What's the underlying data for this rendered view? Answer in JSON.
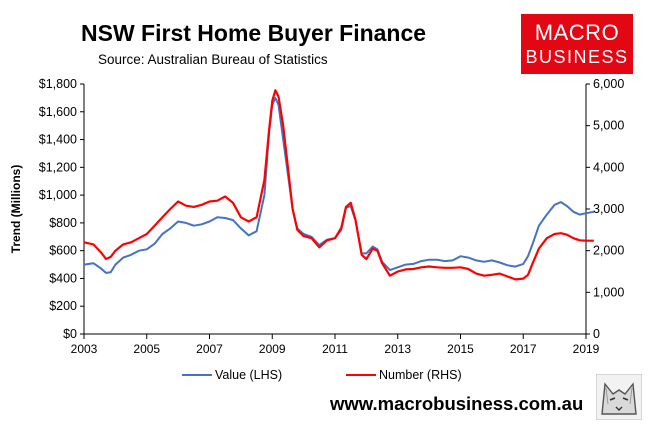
{
  "header": {
    "title": "NSW First Home Buyer Finance",
    "source": "Source: Australian Bureau of Statistics"
  },
  "brand": {
    "logo_line1": "MACRO",
    "logo_line2": "BUSINESS",
    "logo_color": "#e30613",
    "url": "www.macrobusiness.com.au",
    "mascot_icon": "wolf-head-icon"
  },
  "chart_data": {
    "type": "line",
    "ylabel": "Trend (Millions)",
    "xlim": [
      2003,
      2019
    ],
    "ylim_left": [
      0,
      1800
    ],
    "ylim_right": [
      0,
      6000
    ],
    "x_ticks": [
      2003,
      2005,
      2007,
      2009,
      2011,
      2013,
      2015,
      2017,
      2019
    ],
    "y_ticks_left_values": [
      0,
      200,
      400,
      600,
      800,
      1000,
      1200,
      1400,
      1600,
      1800
    ],
    "y_ticks_left_labels": [
      "$0",
      "$200",
      "$400",
      "$600",
      "$800",
      "$1,000",
      "$1,200",
      "$1,400",
      "$1,600",
      "$1,800"
    ],
    "y_ticks_right_values": [
      0,
      1000,
      2000,
      3000,
      4000,
      5000,
      6000
    ],
    "y_ticks_right_labels": [
      "0",
      "1,000",
      "2,000",
      "3,000",
      "4,000",
      "5,000",
      "6,000"
    ],
    "legend_position": "bottom",
    "series": [
      {
        "name": "Value (LHS)",
        "axis": "left",
        "color": "#4472c4",
        "points": [
          [
            2003,
            500
          ],
          [
            2003.3,
            510
          ],
          [
            2003.55,
            470
          ],
          [
            2003.7,
            440
          ],
          [
            2003.85,
            445
          ],
          [
            2004.0,
            500
          ],
          [
            2004.25,
            550
          ],
          [
            2004.5,
            570
          ],
          [
            2004.75,
            600
          ],
          [
            2005.0,
            610
          ],
          [
            2005.25,
            650
          ],
          [
            2005.5,
            720
          ],
          [
            2005.75,
            760
          ],
          [
            2006.0,
            810
          ],
          [
            2006.25,
            800
          ],
          [
            2006.5,
            780
          ],
          [
            2006.75,
            790
          ],
          [
            2007.0,
            810
          ],
          [
            2007.25,
            840
          ],
          [
            2007.5,
            835
          ],
          [
            2007.75,
            820
          ],
          [
            2008.0,
            760
          ],
          [
            2008.25,
            710
          ],
          [
            2008.5,
            740
          ],
          [
            2008.75,
            1000
          ],
          [
            2008.9,
            1450
          ],
          [
            2009.0,
            1650
          ],
          [
            2009.1,
            1700
          ],
          [
            2009.2,
            1650
          ],
          [
            2009.35,
            1400
          ],
          [
            2009.5,
            1150
          ],
          [
            2009.65,
            900
          ],
          [
            2009.8,
            760
          ],
          [
            2010.0,
            720
          ],
          [
            2010.25,
            700
          ],
          [
            2010.5,
            640
          ],
          [
            2010.75,
            680
          ],
          [
            2011.0,
            690
          ],
          [
            2011.2,
            750
          ],
          [
            2011.35,
            910
          ],
          [
            2011.5,
            920
          ],
          [
            2011.65,
            820
          ],
          [
            2011.85,
            580
          ],
          [
            2012.0,
            580
          ],
          [
            2012.2,
            630
          ],
          [
            2012.35,
            610
          ],
          [
            2012.5,
            520
          ],
          [
            2012.75,
            460
          ],
          [
            2013.0,
            480
          ],
          [
            2013.25,
            500
          ],
          [
            2013.5,
            505
          ],
          [
            2013.75,
            525
          ],
          [
            2014.0,
            535
          ],
          [
            2014.25,
            535
          ],
          [
            2014.5,
            525
          ],
          [
            2014.75,
            530
          ],
          [
            2015.0,
            560
          ],
          [
            2015.25,
            550
          ],
          [
            2015.5,
            530
          ],
          [
            2015.75,
            520
          ],
          [
            2016.0,
            530
          ],
          [
            2016.25,
            515
          ],
          [
            2016.5,
            495
          ],
          [
            2016.75,
            485
          ],
          [
            2017.0,
            505
          ],
          [
            2017.15,
            560
          ],
          [
            2017.3,
            650
          ],
          [
            2017.5,
            780
          ],
          [
            2017.75,
            860
          ],
          [
            2018.0,
            930
          ],
          [
            2018.2,
            950
          ],
          [
            2018.4,
            920
          ],
          [
            2018.6,
            880
          ],
          [
            2018.8,
            860
          ],
          [
            2019.0,
            870
          ],
          [
            2019.25,
            880
          ]
        ]
      },
      {
        "name": "Number (RHS)",
        "axis": "right",
        "color": "#ff0000",
        "points": [
          [
            2003,
            2200
          ],
          [
            2003.3,
            2150
          ],
          [
            2003.55,
            1950
          ],
          [
            2003.7,
            1800
          ],
          [
            2003.85,
            1850
          ],
          [
            2004.0,
            2000
          ],
          [
            2004.25,
            2150
          ],
          [
            2004.5,
            2200
          ],
          [
            2004.75,
            2300
          ],
          [
            2005.0,
            2400
          ],
          [
            2005.25,
            2600
          ],
          [
            2005.5,
            2800
          ],
          [
            2005.75,
            3000
          ],
          [
            2006.0,
            3180
          ],
          [
            2006.25,
            3080
          ],
          [
            2006.5,
            3050
          ],
          [
            2006.75,
            3100
          ],
          [
            2007.0,
            3180
          ],
          [
            2007.25,
            3200
          ],
          [
            2007.5,
            3300
          ],
          [
            2007.75,
            3150
          ],
          [
            2008.0,
            2800
          ],
          [
            2008.25,
            2700
          ],
          [
            2008.5,
            2800
          ],
          [
            2008.75,
            3700
          ],
          [
            2008.9,
            4900
          ],
          [
            2009.0,
            5600
          ],
          [
            2009.1,
            5850
          ],
          [
            2009.2,
            5700
          ],
          [
            2009.35,
            5000
          ],
          [
            2009.5,
            4000
          ],
          [
            2009.65,
            3000
          ],
          [
            2009.8,
            2500
          ],
          [
            2010.0,
            2350
          ],
          [
            2010.25,
            2300
          ],
          [
            2010.5,
            2080
          ],
          [
            2010.75,
            2250
          ],
          [
            2011.0,
            2300
          ],
          [
            2011.2,
            2550
          ],
          [
            2011.35,
            3050
          ],
          [
            2011.5,
            3150
          ],
          [
            2011.65,
            2750
          ],
          [
            2011.85,
            1900
          ],
          [
            2012.0,
            1800
          ],
          [
            2012.2,
            2050
          ],
          [
            2012.35,
            2000
          ],
          [
            2012.5,
            1700
          ],
          [
            2012.75,
            1400
          ],
          [
            2013.0,
            1500
          ],
          [
            2013.25,
            1550
          ],
          [
            2013.5,
            1560
          ],
          [
            2013.75,
            1600
          ],
          [
            2014.0,
            1620
          ],
          [
            2014.25,
            1600
          ],
          [
            2014.5,
            1590
          ],
          [
            2014.75,
            1590
          ],
          [
            2015.0,
            1600
          ],
          [
            2015.25,
            1560
          ],
          [
            2015.5,
            1450
          ],
          [
            2015.75,
            1400
          ],
          [
            2016.0,
            1420
          ],
          [
            2016.25,
            1450
          ],
          [
            2016.5,
            1380
          ],
          [
            2016.75,
            1310
          ],
          [
            2017.0,
            1330
          ],
          [
            2017.15,
            1420
          ],
          [
            2017.3,
            1700
          ],
          [
            2017.5,
            2050
          ],
          [
            2017.75,
            2300
          ],
          [
            2018.0,
            2400
          ],
          [
            2018.2,
            2420
          ],
          [
            2018.4,
            2380
          ],
          [
            2018.6,
            2300
          ],
          [
            2018.8,
            2250
          ],
          [
            2019.0,
            2240
          ],
          [
            2019.25,
            2240
          ]
        ]
      }
    ]
  }
}
